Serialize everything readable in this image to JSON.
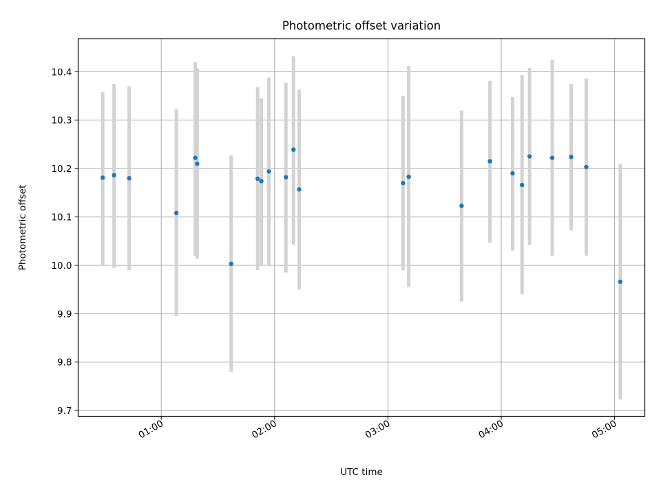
{
  "chart_data": {
    "type": "scatter",
    "title": "Photometric offset variation",
    "xlabel": "UTC time",
    "ylabel": "Photometric offset",
    "xlim": [
      "00:16",
      "05:16"
    ],
    "ylim": [
      9.688,
      10.468
    ],
    "x_ticks": [
      "01:00",
      "02:00",
      "03:00",
      "04:00",
      "05:00"
    ],
    "y_ticks": [
      "9.7",
      "9.8",
      "9.9",
      "10.0",
      "10.1",
      "10.2",
      "10.3",
      "10.4"
    ],
    "grid": true,
    "colors": {
      "point": "#1f77b4",
      "errorbar": "#d3d3d3"
    },
    "points": [
      {
        "x": "00:29",
        "y": 10.181,
        "ylow": 10.0,
        "yhigh": 10.358
      },
      {
        "x": "00:35",
        "y": 10.186,
        "ylow": 9.995,
        "yhigh": 10.375
      },
      {
        "x": "00:43",
        "y": 10.18,
        "ylow": 9.99,
        "yhigh": 10.37
      },
      {
        "x": "01:08",
        "y": 10.108,
        "ylow": 9.895,
        "yhigh": 10.323
      },
      {
        "x": "01:18",
        "y": 10.222,
        "ylow": 10.02,
        "yhigh": 10.42
      },
      {
        "x": "01:19",
        "y": 10.21,
        "ylow": 10.013,
        "yhigh": 10.407
      },
      {
        "x": "01:37",
        "y": 10.003,
        "ylow": 9.78,
        "yhigh": 10.227
      },
      {
        "x": "01:51",
        "y": 10.179,
        "ylow": 9.99,
        "yhigh": 10.368
      },
      {
        "x": "01:53",
        "y": 10.174,
        "ylow": 10.0,
        "yhigh": 10.345
      },
      {
        "x": "01:57",
        "y": 10.194,
        "ylow": 10.0,
        "yhigh": 10.388
      },
      {
        "x": "02:06",
        "y": 10.182,
        "ylow": 9.985,
        "yhigh": 10.377
      },
      {
        "x": "02:10",
        "y": 10.239,
        "ylow": 10.043,
        "yhigh": 10.432
      },
      {
        "x": "02:13",
        "y": 10.157,
        "ylow": 9.95,
        "yhigh": 10.363
      },
      {
        "x": "03:08",
        "y": 10.17,
        "ylow": 9.99,
        "yhigh": 10.35
      },
      {
        "x": "03:11",
        "y": 10.183,
        "ylow": 9.955,
        "yhigh": 10.412
      },
      {
        "x": "03:39",
        "y": 10.123,
        "ylow": 9.925,
        "yhigh": 10.32
      },
      {
        "x": "03:54",
        "y": 10.215,
        "ylow": 10.047,
        "yhigh": 10.381
      },
      {
        "x": "04:06",
        "y": 10.19,
        "ylow": 10.03,
        "yhigh": 10.348
      },
      {
        "x": "04:11",
        "y": 10.166,
        "ylow": 9.94,
        "yhigh": 10.393
      },
      {
        "x": "04:15",
        "y": 10.225,
        "ylow": 10.042,
        "yhigh": 10.408
      },
      {
        "x": "04:27",
        "y": 10.222,
        "ylow": 10.02,
        "yhigh": 10.425
      },
      {
        "x": "04:37",
        "y": 10.224,
        "ylow": 10.072,
        "yhigh": 10.375
      },
      {
        "x": "04:45",
        "y": 10.203,
        "ylow": 10.02,
        "yhigh": 10.386
      },
      {
        "x": "05:03",
        "y": 9.966,
        "ylow": 9.723,
        "yhigh": 10.209
      }
    ]
  }
}
